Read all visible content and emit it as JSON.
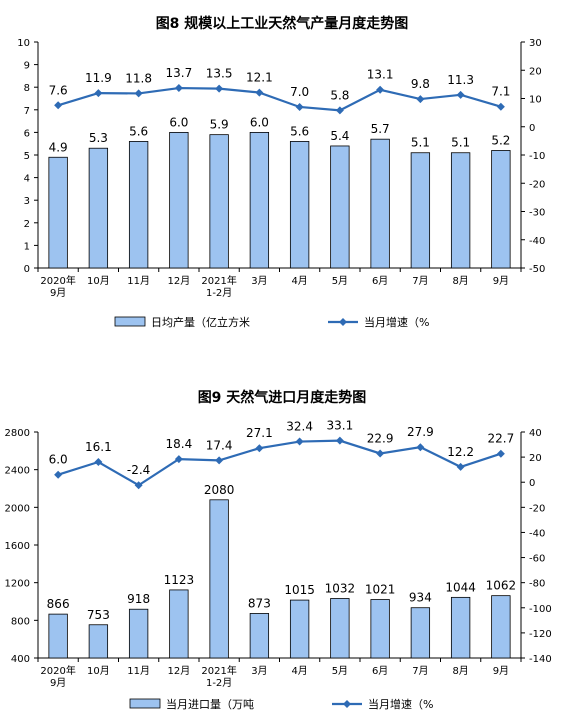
{
  "chart_data": [
    {
      "type": "bar",
      "title": "图8  规模以上工业天然气产量月度走势图",
      "categories": [
        [
          "2020年",
          "9月"
        ],
        [
          "10月"
        ],
        [
          "11月"
        ],
        [
          "12月"
        ],
        [
          "2021年",
          "1-2月"
        ],
        [
          "3月"
        ],
        [
          "4月"
        ],
        [
          "5月"
        ],
        [
          "6月"
        ],
        [
          "7月"
        ],
        [
          "8月"
        ],
        [
          "9月"
        ]
      ],
      "ylim": [
        0,
        10
      ],
      "yticks": [
        0,
        1,
        2,
        3,
        4,
        5,
        6,
        7,
        8,
        9,
        10
      ],
      "y2lim": [
        -50,
        30
      ],
      "y2ticks": [
        -50,
        -40,
        -30,
        -20,
        -10,
        0,
        10,
        20,
        30
      ],
      "series": [
        {
          "name": "日均产量（亿立方米",
          "kind": "bar",
          "axis": "left",
          "color": "#9dc3f0",
          "values": [
            4.9,
            5.3,
            5.6,
            6.0,
            5.9,
            6.0,
            5.6,
            5.4,
            5.7,
            5.1,
            5.1,
            5.2
          ],
          "labels": [
            "4.9",
            "5.3",
            "5.6",
            "6.0",
            "5.9",
            "6.0",
            "5.6",
            "5.4",
            "5.7",
            "5.1",
            "5.1",
            "5.2"
          ]
        },
        {
          "name": "当月增速（%",
          "kind": "line",
          "axis": "right",
          "color": "#2e6bb5",
          "values": [
            7.6,
            11.9,
            11.8,
            13.7,
            13.5,
            12.1,
            7.0,
            5.8,
            13.1,
            9.8,
            11.3,
            7.1
          ],
          "labels": [
            "7.6",
            "11.9",
            "11.8",
            "13.7",
            "13.5",
            "12.1",
            "7.0",
            "5.8",
            "13.1",
            "9.8",
            "11.3",
            "7.1"
          ]
        }
      ],
      "legend_position": "bottom"
    },
    {
      "type": "bar",
      "title": "图9  天然气进口月度走势图",
      "categories": [
        [
          "2020年",
          "9月"
        ],
        [
          "10月"
        ],
        [
          "11月"
        ],
        [
          "12月"
        ],
        [
          "2021年",
          "1-2月"
        ],
        [
          "3月"
        ],
        [
          "4月"
        ],
        [
          "5月"
        ],
        [
          "6月"
        ],
        [
          "7月"
        ],
        [
          "8月"
        ],
        [
          "9月"
        ]
      ],
      "ylim": [
        400,
        2800
      ],
      "yticks": [
        400,
        800,
        1200,
        1600,
        2000,
        2400,
        2800
      ],
      "y2lim": [
        -140,
        40
      ],
      "y2ticks": [
        -140,
        -120,
        -100,
        -80,
        -60,
        -40,
        -20,
        0,
        20,
        40
      ],
      "series": [
        {
          "name": "当月进口量（万吨",
          "kind": "bar",
          "axis": "left",
          "color": "#9dc3f0",
          "values": [
            866,
            753,
            918,
            1123,
            2080,
            873,
            1015,
            1032,
            1021,
            934,
            1044,
            1062
          ],
          "labels": [
            "866",
            "753",
            "918",
            "1123",
            "2080",
            "873",
            "1015",
            "1032",
            "1021",
            "934",
            "1044",
            "1062"
          ]
        },
        {
          "name": "当月增速（%",
          "kind": "line",
          "axis": "right",
          "color": "#2e6bb5",
          "values": [
            6.0,
            16.1,
            -2.4,
            18.4,
            17.4,
            27.1,
            32.4,
            33.1,
            22.9,
            27.9,
            12.2,
            22.7
          ],
          "labels": [
            "6.0",
            "16.1",
            "-2.4",
            "18.4",
            "17.4",
            "27.1",
            "32.4",
            "33.1",
            "22.9",
            "27.9",
            "12.2",
            "22.7"
          ]
        }
      ],
      "legend_position": "bottom"
    }
  ]
}
